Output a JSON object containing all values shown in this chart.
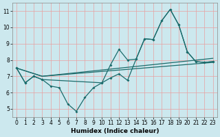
{
  "bg_color": "#cce8ee",
  "grid_color": "#e8a0a0",
  "line_color": "#1a6b6b",
  "xlabel": "Humidex (Indice chaleur)",
  "xlim": [
    -0.5,
    23.5
  ],
  "ylim": [
    4.5,
    11.5
  ],
  "yticks": [
    5,
    6,
    7,
    8,
    9,
    10,
    11
  ],
  "xticks": [
    0,
    1,
    2,
    3,
    4,
    5,
    6,
    7,
    8,
    9,
    10,
    11,
    12,
    13,
    14,
    15,
    16,
    17,
    18,
    19,
    20,
    21,
    22,
    23
  ],
  "line1_x": [
    0,
    1,
    2,
    3,
    4,
    5,
    6,
    7,
    8,
    9,
    10,
    11,
    12,
    13,
    14,
    15,
    16,
    17,
    18,
    19,
    20,
    21,
    22,
    23
  ],
  "line1_y": [
    7.5,
    6.6,
    7.0,
    6.8,
    6.4,
    6.3,
    5.3,
    4.85,
    5.7,
    6.3,
    6.6,
    6.9,
    7.15,
    6.75,
    8.05,
    9.3,
    9.25,
    10.4,
    11.1,
    10.15,
    8.5,
    7.9,
    7.85,
    7.9
  ],
  "line2_x": [
    0,
    1,
    2,
    3,
    10,
    11,
    12,
    13,
    14,
    15,
    16,
    17,
    18,
    19,
    20,
    21,
    22,
    23
  ],
  "line2_y": [
    7.5,
    6.6,
    7.0,
    6.8,
    6.6,
    7.7,
    8.65,
    8.0,
    8.05,
    9.3,
    9.25,
    10.4,
    11.1,
    10.15,
    8.5,
    7.9,
    7.85,
    7.9
  ],
  "line3_x": [
    0,
    3,
    23
  ],
  "line3_y": [
    7.5,
    7.0,
    7.85
  ],
  "line4_x": [
    0,
    3,
    23
  ],
  "line4_y": [
    7.5,
    7.0,
    8.1
  ]
}
